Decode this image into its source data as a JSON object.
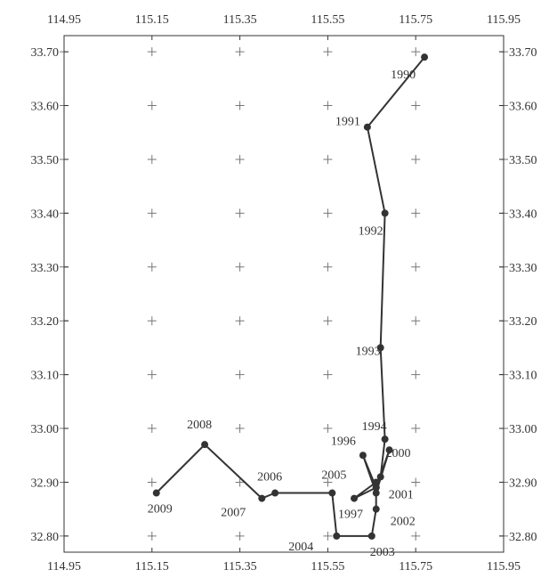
{
  "chart_data": {
    "type": "line",
    "title": "",
    "xlabel": "",
    "ylabel": "",
    "xlim": [
      114.95,
      115.95
    ],
    "ylim": [
      32.77,
      33.73
    ],
    "grid": true,
    "x_ticks": [
      "114.95",
      "115.15",
      "115.35",
      "115.55",
      "115.75",
      "115.95"
    ],
    "y_ticks": [
      "33.70",
      "33.60",
      "33.50",
      "33.40",
      "33.30",
      "33.20",
      "33.10",
      "33.00",
      "32.90",
      "32.80"
    ],
    "colors": {
      "line": "#333333",
      "grid": "#777777",
      "frame": "#333333",
      "text": "#333333"
    },
    "series": [
      {
        "points": [
          {
            "label": "1990",
            "x": 115.77,
            "y": 33.69
          },
          {
            "label": "1991",
            "x": 115.64,
            "y": 33.56
          },
          {
            "label": "1992",
            "x": 115.68,
            "y": 33.4
          },
          {
            "label": "1993",
            "x": 115.67,
            "y": 33.15
          },
          {
            "label": "1994",
            "x": 115.68,
            "y": 32.98
          },
          {
            "label": "",
            "x": 115.67,
            "y": 32.91
          },
          {
            "label": "",
            "x": 115.66,
            "y": 32.89
          },
          {
            "label": "1996",
            "x": 115.63,
            "y": 32.95
          },
          {
            "label": "",
            "x": 115.66,
            "y": 32.88
          },
          {
            "label": "2000",
            "x": 115.69,
            "y": 32.96
          },
          {
            "label": "2001",
            "x": 115.66,
            "y": 32.89
          },
          {
            "label": "1997",
            "x": 115.61,
            "y": 32.87
          },
          {
            "label": "",
            "x": 115.66,
            "y": 32.9
          },
          {
            "label": "2002",
            "x": 115.66,
            "y": 32.85
          },
          {
            "label": "2003",
            "x": 115.65,
            "y": 32.8
          },
          {
            "label": "2004",
            "x": 115.57,
            "y": 32.8
          },
          {
            "label": "2005",
            "x": 115.56,
            "y": 32.88
          },
          {
            "label": "2006",
            "x": 115.43,
            "y": 32.88
          },
          {
            "label": "2007",
            "x": 115.4,
            "y": 32.87
          },
          {
            "label": "2008",
            "x": 115.27,
            "y": 32.97
          },
          {
            "label": "2009",
            "x": 115.16,
            "y": 32.88
          }
        ]
      }
    ]
  }
}
